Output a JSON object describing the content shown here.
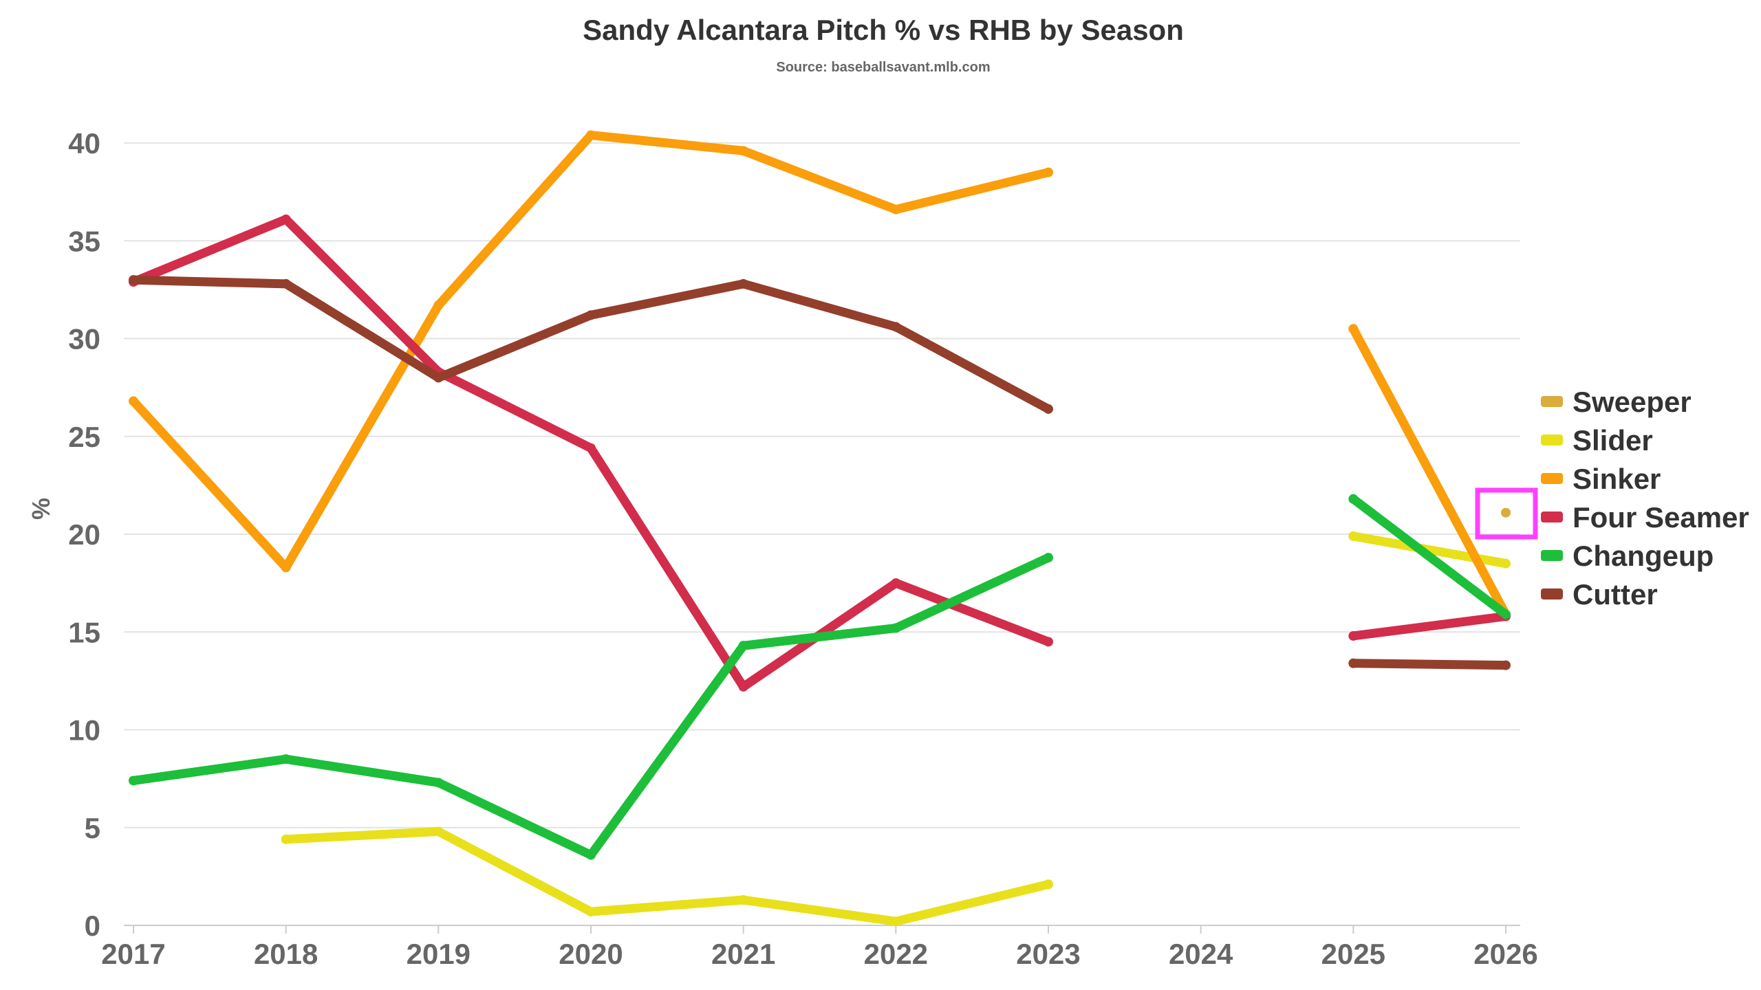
{
  "chart_data": {
    "type": "line",
    "title": "Sandy Alcantara Pitch % vs RHB by Season",
    "subtitle": "Source: baseballsavant.mlb.com",
    "xlabel": "",
    "ylabel": "%",
    "x": [
      2017,
      2018,
      2019,
      2020,
      2021,
      2022,
      2023,
      2024,
      2025,
      2026
    ],
    "x_tick_labels": [
      "2017",
      "2018",
      "2019",
      "2020",
      "2021",
      "2022",
      "2023",
      "2024",
      "2025",
      "2026"
    ],
    "ylim": [
      0,
      40
    ],
    "y_ticks": [
      0,
      5,
      10,
      15,
      20,
      25,
      30,
      35,
      40
    ],
    "grid": true,
    "legend_position": "right",
    "series": [
      {
        "name": "Sweeper",
        "color": "#d9ac3c",
        "values": [
          null,
          null,
          null,
          null,
          null,
          null,
          null,
          null,
          null,
          21.1
        ]
      },
      {
        "name": "Slider",
        "color": "#e8e01a",
        "values": [
          null,
          4.4,
          4.8,
          0.7,
          1.3,
          0.2,
          2.1,
          null,
          19.9,
          18.5
        ]
      },
      {
        "name": "Sinker",
        "color": "#fa9e0c",
        "values": [
          26.8,
          18.3,
          31.7,
          40.4,
          39.6,
          36.6,
          38.5,
          null,
          30.5,
          15.9
        ]
      },
      {
        "name": "Four Seamer",
        "color": "#d22d4b",
        "values": [
          32.9,
          36.1,
          28.3,
          24.4,
          12.2,
          17.5,
          14.5,
          null,
          14.8,
          15.8
        ]
      },
      {
        "name": "Changeup",
        "color": "#1dbe3a",
        "values": [
          7.4,
          8.5,
          7.3,
          3.6,
          14.3,
          15.2,
          18.8,
          null,
          21.8,
          15.9
        ]
      },
      {
        "name": "Cutter",
        "color": "#933f2c",
        "values": [
          33.0,
          32.8,
          28.0,
          31.2,
          32.8,
          30.6,
          26.4,
          null,
          13.4,
          13.3
        ]
      }
    ],
    "highlight_color": "#ff40ff"
  }
}
